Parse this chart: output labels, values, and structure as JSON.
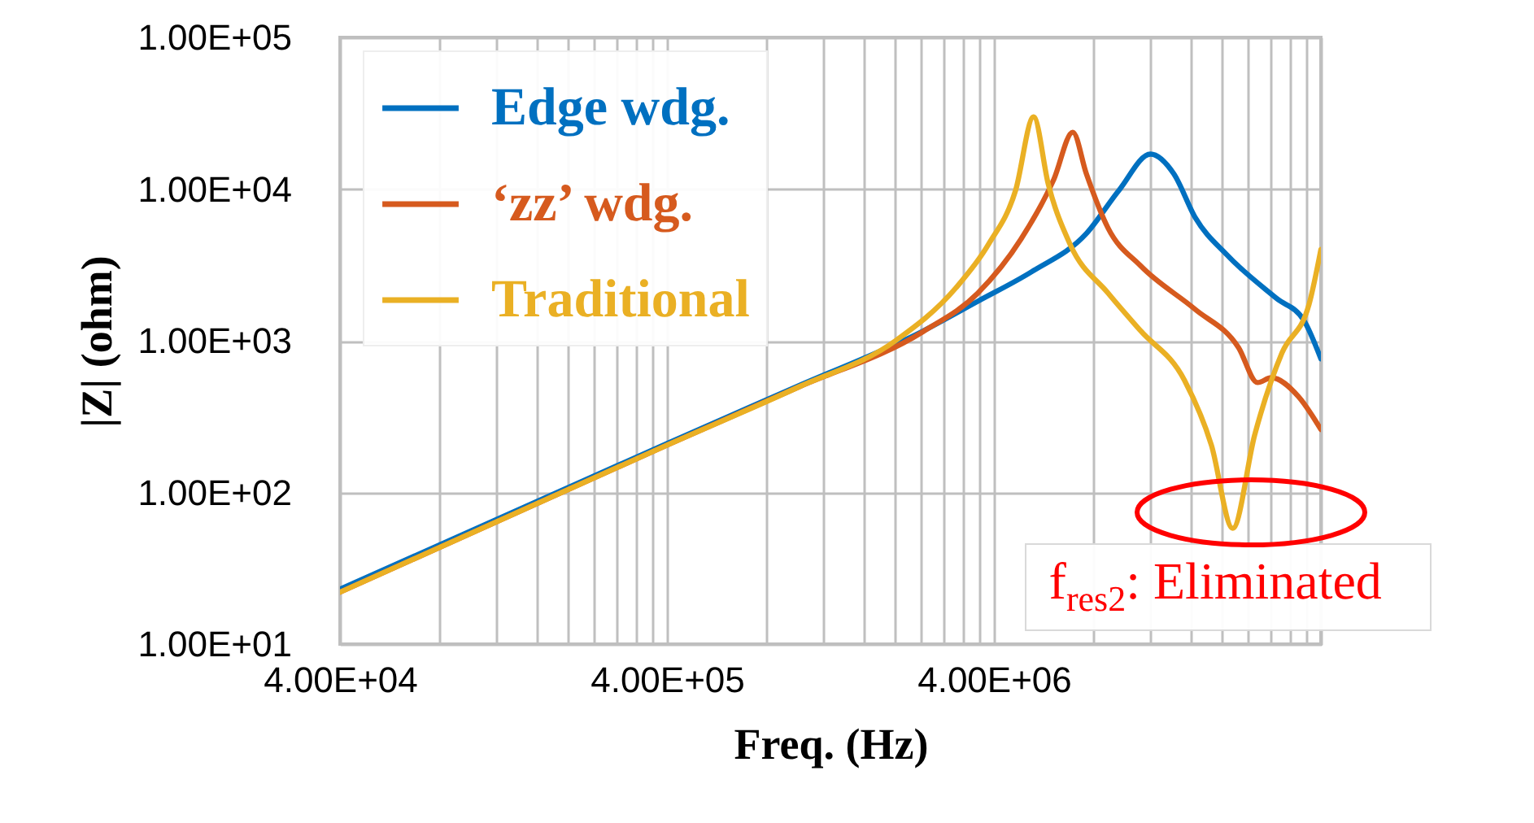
{
  "chart_data": {
    "type": "line",
    "xlabel": "Freq. (Hz)",
    "ylabel": "|Z| (ohm)",
    "log": "xy",
    "grid": true,
    "legend": "top left",
    "line_style": "solid",
    "marker": "none",
    "xlim": [
      40000,
      40000000
    ],
    "ylim": [
      10,
      100000
    ],
    "xticks": [
      {
        "value": 40000,
        "label": "4.00E+04"
      },
      {
        "value": 80000,
        "label": null
      },
      {
        "value": 120000,
        "label": null
      },
      {
        "value": 160000,
        "label": null
      },
      {
        "value": 200000,
        "label": null
      },
      {
        "value": 240000,
        "label": null
      },
      {
        "value": 280000,
        "label": null
      },
      {
        "value": 320000,
        "label": null
      },
      {
        "value": 360000,
        "label": null
      },
      {
        "value": 400000,
        "label": "4.00E+05"
      },
      {
        "value": 800000,
        "label": null
      },
      {
        "value": 1200000,
        "label": null
      },
      {
        "value": 1600000,
        "label": null
      },
      {
        "value": 2000000,
        "label": null
      },
      {
        "value": 2400000,
        "label": null
      },
      {
        "value": 2800000,
        "label": null
      },
      {
        "value": 3200000,
        "label": null
      },
      {
        "value": 3600000,
        "label": null
      },
      {
        "value": 4000000,
        "label": "4.00E+06"
      },
      {
        "value": 8000000,
        "label": null
      },
      {
        "value": 12000000,
        "label": null
      },
      {
        "value": 16000000,
        "label": null
      },
      {
        "value": 20000000,
        "label": null
      },
      {
        "value": 24000000,
        "label": null
      },
      {
        "value": 28000000,
        "label": null
      },
      {
        "value": 32000000,
        "label": null
      },
      {
        "value": 36000000,
        "label": null
      },
      {
        "value": 40000000,
        "label": null
      }
    ],
    "yticks": [
      {
        "value": 10,
        "label": "1.00E+01"
      },
      {
        "value": 100,
        "label": "1.00E+02"
      },
      {
        "value": 1000,
        "label": "1.00E+03"
      },
      {
        "value": 10000,
        "label": "1.00E+04"
      },
      {
        "value": 100000,
        "label": "1.00E+05"
      }
    ],
    "series": [
      {
        "name": "Edge wdg.",
        "color": "#0070c0",
        "x": [
          40000,
          400000,
          1000000,
          2430000,
          3570000,
          5230000,
          7670000,
          9650000,
          12050000,
          14200000,
          16500000,
          20700000,
          29300000,
          35500000,
          40000000
        ],
        "values": [
          23,
          210,
          500,
          1160,
          1820,
          2860,
          5090,
          9820,
          17000,
          12600,
          6500,
          3660,
          1900,
          1360,
          760
        ]
      },
      {
        "name": "‘zz’ wdg.",
        "color": "#d65a1e",
        "x": [
          40000,
          400000,
          1000000,
          2430000,
          3570000,
          4840000,
          6100000,
          6970000,
          7670000,
          8940000,
          11250000,
          16500000,
          22400000,
          25600000,
          28200000,
          34100000,
          40000000
        ],
        "values": [
          22,
          205,
          490,
          1150,
          2060,
          4680,
          11600,
          23700,
          12600,
          5520,
          3110,
          1610,
          900,
          530,
          570,
          430,
          260
        ]
      },
      {
        "name": "Traditional",
        "color": "#eab024",
        "x": [
          40000,
          400000,
          1000000,
          2000000,
          3060000,
          3850000,
          4660000,
          5290000,
          5870000,
          6840000,
          8940000,
          11250000,
          15300000,
          18500000,
          21500000,
          25100000,
          30400000,
          36800000,
          40000000
        ],
        "values": [
          22,
          205,
          490,
          1000,
          2230,
          4320,
          9820,
          29900,
          10700,
          4320,
          2060,
          1160,
          550,
          205,
          58,
          240,
          830,
          1740,
          4000
        ]
      }
    ],
    "annotations": [
      {
        "text": "f$_{res2}$: Eliminated",
        "x": 21500000,
        "y": 58
      }
    ]
  }
}
